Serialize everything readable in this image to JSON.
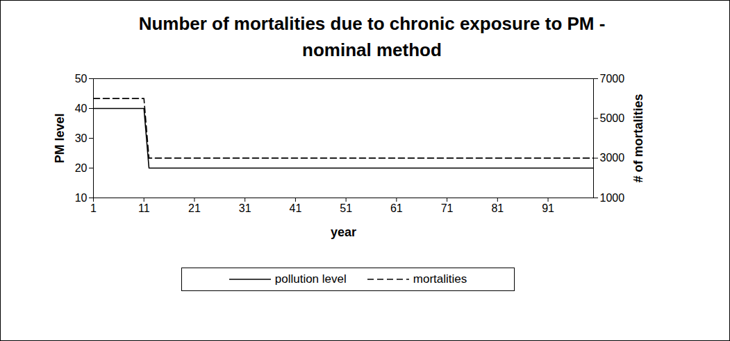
{
  "chart_data": {
    "type": "line",
    "title": "Number of mortalities due to chronic exposure to PM - nominal method",
    "xlabel": "year",
    "ylabel": "PM level",
    "y2label": "# of mortalities",
    "x": [
      1,
      2,
      3,
      4,
      5,
      6,
      7,
      8,
      9,
      10,
      11,
      12,
      13,
      14,
      15,
      16,
      17,
      18,
      19,
      20,
      21,
      22,
      23,
      24,
      25,
      26,
      27,
      28,
      29,
      30,
      31,
      32,
      33,
      34,
      35,
      36,
      37,
      38,
      39,
      40,
      41,
      42,
      43,
      44,
      45,
      46,
      47,
      48,
      49,
      50,
      51,
      52,
      53,
      54,
      55,
      56,
      57,
      58,
      59,
      60,
      61,
      62,
      63,
      64,
      65,
      66,
      67,
      68,
      69,
      70,
      71,
      72,
      73,
      74,
      75,
      76,
      77,
      78,
      79,
      80,
      81,
      82,
      83,
      84,
      85,
      86,
      87,
      88,
      89,
      90,
      91,
      92,
      93,
      94,
      95,
      96,
      97,
      98,
      99,
      100
    ],
    "series": [
      {
        "name": "pollution level",
        "color": "#000000",
        "line_style": "solid",
        "values": [
          40,
          40,
          40,
          40,
          40,
          40,
          40,
          40,
          40,
          40,
          40,
          20,
          20,
          20,
          20,
          20,
          20,
          20,
          20,
          20,
          20,
          20,
          20,
          20,
          20,
          20,
          20,
          20,
          20,
          20,
          20,
          20,
          20,
          20,
          20,
          20,
          20,
          20,
          20,
          20,
          20,
          20,
          20,
          20,
          20,
          20,
          20,
          20,
          20,
          20,
          20,
          20,
          20,
          20,
          20,
          20,
          20,
          20,
          20,
          20,
          20,
          20,
          20,
          20,
          20,
          20,
          20,
          20,
          20,
          20,
          20,
          20,
          20,
          20,
          20,
          20,
          20,
          20,
          20,
          20,
          20,
          20,
          20,
          20,
          20,
          20,
          20,
          20,
          20,
          20,
          20,
          20,
          20,
          20,
          20,
          20,
          20,
          20,
          20,
          20
        ]
      },
      {
        "name": "mortalities",
        "color": "#000000",
        "line_style": "dashed",
        "axis": "y2",
        "values": [
          6000,
          6000,
          6000,
          6000,
          6000,
          6000,
          6000,
          6000,
          6000,
          6000,
          6000,
          3000,
          3000,
          3000,
          3000,
          3000,
          3000,
          3000,
          3000,
          3000,
          3000,
          3000,
          3000,
          3000,
          3000,
          3000,
          3000,
          3000,
          3000,
          3000,
          3000,
          3000,
          3000,
          3000,
          3000,
          3000,
          3000,
          3000,
          3000,
          3000,
          3000,
          3000,
          3000,
          3000,
          3000,
          3000,
          3000,
          3000,
          3000,
          3000,
          3000,
          3000,
          3000,
          3000,
          3000,
          3000,
          3000,
          3000,
          3000,
          3000,
          3000,
          3000,
          3000,
          3000,
          3000,
          3000,
          3000,
          3000,
          3000,
          3000,
          3000,
          3000,
          3000,
          3000,
          3000,
          3000,
          3000,
          3000,
          3000,
          3000,
          3000,
          3000,
          3000,
          3000,
          3000,
          3000,
          3000,
          3000,
          3000,
          3000,
          3000,
          3000,
          3000,
          3000,
          3000,
          3000,
          3000,
          3000,
          3000,
          3000
        ]
      }
    ],
    "xlim": [
      1,
      100
    ],
    "xticks": [
      1,
      11,
      21,
      31,
      41,
      51,
      61,
      71,
      81,
      91
    ],
    "ylim": [
      10,
      50
    ],
    "yticks": [
      10,
      20,
      30,
      40,
      50
    ],
    "y2lim": [
      1000,
      7000
    ],
    "y2ticks": [
      1000,
      3000,
      5000,
      7000
    ],
    "grid": false,
    "legend": "bottom"
  }
}
